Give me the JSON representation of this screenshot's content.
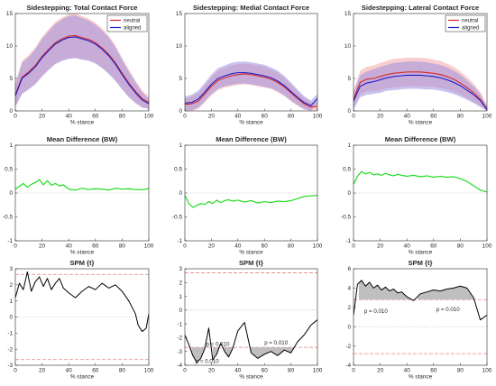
{
  "colors": {
    "neutral": "#d62728",
    "aligned": "#1f1fc8",
    "neutral_band": "#f4a6a6",
    "aligned_band": "#9e8fe0",
    "mean_diff": "#22dd22",
    "spm_line": "#000000",
    "threshold": "#e88080",
    "zero_line": "#bdbdbd",
    "cluster_fill": "#bfbfbf",
    "axes": "#262626"
  },
  "chart_data": [
    {
      "id": "total_force",
      "type": "line",
      "title": "Sidestepping: Total Contact Force",
      "xlabel": "% stance",
      "ylabel": "",
      "xlim": [
        0,
        100
      ],
      "ylim": [
        0,
        15
      ],
      "xticks": [
        0,
        20,
        40,
        60,
        80,
        100
      ],
      "yticks": [
        0,
        5,
        10,
        15
      ],
      "legend": {
        "placement": "top-right",
        "entries": [
          "neutral",
          "aligned"
        ]
      },
      "x": [
        0,
        5,
        10,
        15,
        20,
        25,
        30,
        35,
        40,
        45,
        50,
        55,
        60,
        65,
        70,
        75,
        80,
        85,
        90,
        95,
        100
      ],
      "series": [
        {
          "name": "neutral",
          "values": [
            2.5,
            5.2,
            6.0,
            7.0,
            8.4,
            9.5,
            10.5,
            11.1,
            11.5,
            11.6,
            11.3,
            11.0,
            10.5,
            9.7,
            8.7,
            7.4,
            5.8,
            4.3,
            3.0,
            1.9,
            1.3
          ],
          "band": [
            1.8,
            2.5,
            2.6,
            2.8,
            3.0,
            3.1,
            3.2,
            3.3,
            3.4,
            3.4,
            3.3,
            3.2,
            3.1,
            3.0,
            2.9,
            2.7,
            2.4,
            2.1,
            1.7,
            1.3,
            0.9
          ]
        },
        {
          "name": "aligned",
          "values": [
            2.3,
            5.0,
            5.8,
            6.8,
            8.2,
            9.3,
            10.3,
            10.9,
            11.3,
            11.4,
            11.1,
            10.8,
            10.3,
            9.5,
            8.5,
            7.2,
            5.6,
            4.1,
            2.8,
            1.7,
            1.1
          ],
          "band": [
            1.7,
            2.4,
            2.5,
            2.7,
            2.9,
            3.0,
            3.1,
            3.2,
            3.3,
            3.3,
            3.2,
            3.1,
            3.0,
            2.9,
            2.8,
            2.6,
            2.3,
            2.0,
            1.6,
            1.2,
            0.8
          ]
        }
      ]
    },
    {
      "id": "medial_force",
      "type": "line",
      "title": "Sidestepping: Medial Contact Force",
      "xlabel": "% stance",
      "ylabel": "",
      "xlim": [
        0,
        100
      ],
      "ylim": [
        0,
        15
      ],
      "xticks": [
        0,
        20,
        40,
        60,
        80,
        100
      ],
      "yticks": [
        0,
        5,
        10,
        15
      ],
      "legend": null,
      "x": [
        0,
        5,
        10,
        15,
        20,
        25,
        30,
        35,
        40,
        45,
        50,
        55,
        60,
        65,
        70,
        75,
        80,
        85,
        90,
        95,
        100
      ],
      "series": [
        {
          "name": "neutral",
          "values": [
            1.0,
            1.1,
            1.5,
            2.6,
            3.8,
            4.7,
            5.1,
            5.4,
            5.6,
            5.7,
            5.6,
            5.4,
            5.2,
            4.9,
            4.4,
            3.7,
            2.8,
            1.9,
            1.1,
            0.6,
            0.7
          ],
          "band": [
            0.9,
            1.1,
            1.2,
            1.3,
            1.4,
            1.5,
            1.5,
            1.6,
            1.6,
            1.6,
            1.6,
            1.6,
            1.6,
            1.5,
            1.5,
            1.4,
            1.3,
            1.1,
            0.9,
            0.7,
            0.6
          ]
        },
        {
          "name": "aligned",
          "values": [
            1.2,
            1.3,
            1.8,
            2.9,
            4.1,
            5.0,
            5.4,
            5.7,
            5.9,
            5.9,
            5.8,
            5.6,
            5.4,
            5.1,
            4.6,
            3.9,
            3.0,
            2.1,
            1.3,
            0.8,
            1.9
          ],
          "band": [
            1.0,
            1.2,
            1.3,
            1.4,
            1.5,
            1.6,
            1.6,
            1.7,
            1.7,
            1.7,
            1.7,
            1.7,
            1.7,
            1.6,
            1.6,
            1.5,
            1.4,
            1.2,
            1.0,
            0.8,
            0.7
          ]
        }
      ]
    },
    {
      "id": "lateral_force",
      "type": "line",
      "title": "Sidestepping: Lateral Contact Force",
      "xlabel": "% stance",
      "ylabel": "",
      "xlim": [
        0,
        100
      ],
      "ylim": [
        0,
        15
      ],
      "xticks": [
        0,
        20,
        40,
        60,
        80,
        100
      ],
      "yticks": [
        0,
        5,
        10,
        15
      ],
      "legend": {
        "placement": "top-right",
        "entries": [
          "neutral",
          "aligned"
        ]
      },
      "x": [
        0,
        5,
        10,
        15,
        20,
        25,
        30,
        35,
        40,
        45,
        50,
        55,
        60,
        65,
        70,
        75,
        80,
        85,
        90,
        95,
        100
      ],
      "series": [
        {
          "name": "neutral",
          "values": [
            1.8,
            4.4,
            4.9,
            5.0,
            5.3,
            5.6,
            5.8,
            5.9,
            6.0,
            6.0,
            6.0,
            5.9,
            5.8,
            5.6,
            5.3,
            4.9,
            4.3,
            3.6,
            2.8,
            1.8,
            0.3
          ],
          "band": [
            1.4,
            1.8,
            1.9,
            2.0,
            2.1,
            2.1,
            2.2,
            2.2,
            2.2,
            2.2,
            2.2,
            2.2,
            2.1,
            2.1,
            2.0,
            1.9,
            1.8,
            1.6,
            1.4,
            1.1,
            0.6
          ]
        },
        {
          "name": "aligned",
          "values": [
            1.5,
            3.8,
            4.3,
            4.5,
            4.8,
            5.1,
            5.3,
            5.4,
            5.5,
            5.5,
            5.5,
            5.4,
            5.3,
            5.1,
            4.8,
            4.4,
            3.9,
            3.2,
            2.5,
            1.6,
            0.2
          ],
          "band": [
            1.3,
            1.7,
            1.8,
            1.9,
            2.0,
            2.0,
            2.1,
            2.1,
            2.1,
            2.1,
            2.1,
            2.1,
            2.0,
            2.0,
            1.9,
            1.8,
            1.7,
            1.5,
            1.3,
            1.0,
            0.5
          ]
        }
      ]
    },
    {
      "id": "total_diff",
      "type": "line",
      "title": "Mean Difference (BW)",
      "xlabel": "% stance",
      "ylabel": "",
      "xlim": [
        0,
        100
      ],
      "ylim": [
        -1,
        1
      ],
      "xticks": [
        0,
        20,
        40,
        60,
        80,
        100
      ],
      "yticks": [
        -1,
        -0.5,
        0,
        0.5,
        1
      ],
      "zero_line": true,
      "x": [
        0,
        3,
        6,
        9,
        12,
        15,
        18,
        21,
        24,
        27,
        30,
        33,
        36,
        40,
        45,
        50,
        55,
        60,
        65,
        70,
        75,
        80,
        85,
        90,
        95,
        100
      ],
      "series": [
        {
          "name": "",
          "values": [
            0.08,
            0.14,
            0.2,
            0.12,
            0.18,
            0.22,
            0.28,
            0.17,
            0.26,
            0.16,
            0.2,
            0.15,
            0.17,
            0.08,
            0.06,
            0.1,
            0.07,
            0.09,
            0.08,
            0.06,
            0.1,
            0.08,
            0.09,
            0.07,
            0.07,
            0.09
          ]
        }
      ]
    },
    {
      "id": "medial_diff",
      "type": "line",
      "title": "Mean Difference (BW)",
      "xlabel": "% stance",
      "ylabel": "",
      "xlim": [
        0,
        100
      ],
      "ylim": [
        -1,
        1
      ],
      "xticks": [
        0,
        20,
        40,
        60,
        80,
        100
      ],
      "yticks": [
        -1,
        -0.5,
        0,
        0.5,
        1
      ],
      "zero_line": true,
      "x": [
        0,
        3,
        6,
        9,
        12,
        15,
        18,
        21,
        24,
        27,
        30,
        33,
        36,
        40,
        45,
        50,
        55,
        60,
        65,
        70,
        75,
        80,
        85,
        90,
        95,
        100
      ],
      "series": [
        {
          "name": "",
          "values": [
            -0.05,
            -0.22,
            -0.3,
            -0.26,
            -0.22,
            -0.24,
            -0.18,
            -0.22,
            -0.15,
            -0.2,
            -0.16,
            -0.14,
            -0.17,
            -0.15,
            -0.19,
            -0.16,
            -0.21,
            -0.18,
            -0.2,
            -0.17,
            -0.18,
            -0.16,
            -0.12,
            -0.07,
            -0.06,
            -0.05
          ]
        }
      ]
    },
    {
      "id": "lateral_diff",
      "type": "line",
      "title": "Mean Difference (BW)",
      "xlabel": "% stance",
      "ylabel": "",
      "xlim": [
        0,
        100
      ],
      "ylim": [
        -1,
        1
      ],
      "xticks": [
        0,
        20,
        40,
        60,
        80,
        100
      ],
      "yticks": [
        -1,
        -0.5,
        0,
        0.5,
        1
      ],
      "zero_line": true,
      "x": [
        0,
        3,
        6,
        9,
        12,
        15,
        18,
        21,
        24,
        27,
        30,
        33,
        36,
        40,
        45,
        50,
        55,
        60,
        65,
        70,
        75,
        80,
        85,
        90,
        95,
        100
      ],
      "series": [
        {
          "name": "",
          "values": [
            0.18,
            0.35,
            0.45,
            0.4,
            0.43,
            0.38,
            0.4,
            0.37,
            0.41,
            0.38,
            0.36,
            0.39,
            0.37,
            0.35,
            0.37,
            0.34,
            0.36,
            0.33,
            0.35,
            0.33,
            0.34,
            0.3,
            0.24,
            0.15,
            0.06,
            0.02
          ]
        }
      ]
    },
    {
      "id": "total_spm",
      "type": "line",
      "title": "SPM {t}",
      "xlabel": "% stance",
      "ylabel": "",
      "xlim": [
        0,
        100
      ],
      "ylim": [
        -3,
        3
      ],
      "xticks": [
        0,
        20,
        40,
        60,
        80,
        100
      ],
      "yticks": [
        -3,
        -2,
        -1,
        0,
        1,
        2,
        3
      ],
      "threshold": 2.65,
      "zero_line": true,
      "clusters": [],
      "x": [
        0,
        3,
        6,
        9,
        12,
        15,
        18,
        21,
        24,
        27,
        30,
        33,
        36,
        40,
        45,
        50,
        55,
        60,
        65,
        70,
        75,
        80,
        85,
        90,
        92,
        95,
        98,
        100
      ],
      "series": [
        {
          "name": "",
          "values": [
            1.2,
            2.1,
            1.7,
            2.8,
            1.6,
            2.2,
            2.5,
            1.9,
            2.4,
            1.7,
            2.1,
            2.4,
            1.8,
            1.5,
            1.2,
            1.6,
            1.9,
            1.7,
            2.1,
            1.8,
            2.0,
            1.6,
            1.0,
            0.2,
            -0.5,
            -0.9,
            -0.7,
            0.2
          ]
        }
      ]
    },
    {
      "id": "medial_spm",
      "type": "line",
      "title": "SPM {t}",
      "xlabel": "% stance",
      "ylabel": "",
      "xlim": [
        0,
        100
      ],
      "ylim": [
        -4,
        3
      ],
      "xticks": [
        0,
        20,
        40,
        60,
        80,
        100
      ],
      "yticks": [
        -4,
        -3,
        -2,
        -1,
        0,
        1,
        2,
        3
      ],
      "threshold": 2.7,
      "zero_line": true,
      "clusters": [
        {
          "x0": 5,
          "x1": 18,
          "p_label": "p = 0.010",
          "label_x": 8,
          "label_y": -3.7
        },
        {
          "x0": 21,
          "x1": 36,
          "p_label": "p = 0.010",
          "label_x": 16,
          "label_y": -2.45
        },
        {
          "x0": 48,
          "x1": 82,
          "p_label": "p = 0.010",
          "label_x": 60,
          "label_y": -2.35
        }
      ],
      "x": [
        0,
        3,
        6,
        9,
        12,
        15,
        18,
        21,
        24,
        27,
        30,
        33,
        36,
        40,
        45,
        50,
        55,
        60,
        65,
        70,
        75,
        80,
        85,
        90,
        95,
        100
      ],
      "series": [
        {
          "name": "",
          "values": [
            -1.8,
            -2.5,
            -3.3,
            -3.8,
            -3.5,
            -2.8,
            -1.3,
            -3.6,
            -3.2,
            -2.4,
            -3.0,
            -3.4,
            -2.8,
            -1.5,
            -0.9,
            -3.1,
            -3.5,
            -3.2,
            -3.0,
            -3.3,
            -2.9,
            -3.1,
            -2.3,
            -1.8,
            -1.1,
            -0.7
          ]
        }
      ]
    },
    {
      "id": "lateral_spm",
      "type": "line",
      "title": "SPM {t}",
      "xlabel": "% stance",
      "ylabel": "",
      "xlim": [
        0,
        100
      ],
      "ylim": [
        -4,
        6
      ],
      "xticks": [
        0,
        20,
        40,
        60,
        80,
        100
      ],
      "yticks": [
        -4,
        -2,
        0,
        2,
        4,
        6
      ],
      "threshold": 2.8,
      "zero_line": true,
      "clusters": [
        {
          "x0": 4,
          "x1": 42,
          "p_label": "p = 0.010",
          "label_x": 8,
          "label_y": 1.6
        },
        {
          "x0": 48,
          "x1": 91,
          "p_label": "p = 0.010",
          "label_x": 62,
          "label_y": 1.8
        }
      ],
      "x": [
        0,
        3,
        6,
        9,
        12,
        15,
        18,
        21,
        24,
        27,
        30,
        33,
        36,
        40,
        45,
        50,
        55,
        60,
        65,
        70,
        75,
        80,
        85,
        90,
        95,
        100
      ],
      "series": [
        {
          "name": "",
          "values": [
            1.2,
            4.4,
            4.8,
            4.2,
            4.6,
            4.0,
            4.3,
            3.8,
            4.1,
            3.7,
            3.9,
            3.5,
            3.6,
            3.1,
            2.7,
            3.4,
            3.6,
            3.8,
            3.7,
            3.9,
            4.0,
            4.2,
            4.0,
            3.0,
            0.7,
            1.2
          ]
        }
      ]
    }
  ]
}
